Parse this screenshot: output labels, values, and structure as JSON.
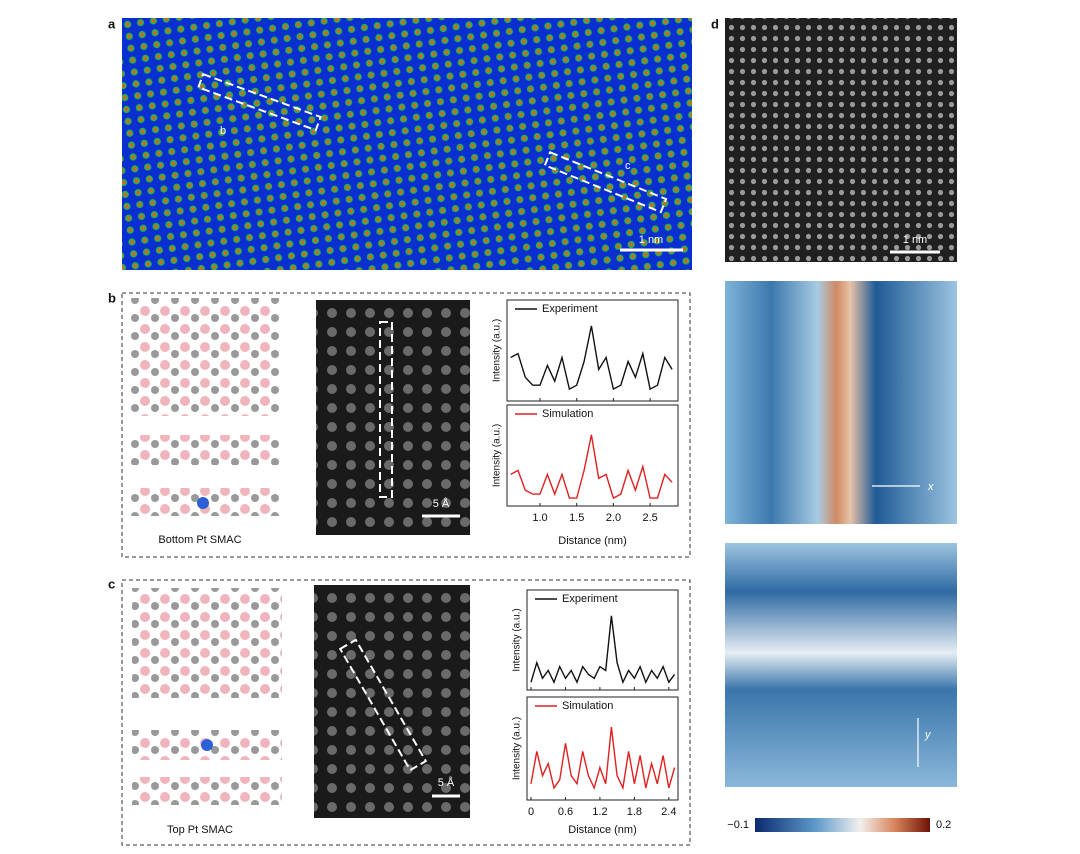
{
  "panel_a": {
    "label": "a",
    "markers": [
      "b",
      "c"
    ],
    "scale_bar": "1 nm"
  },
  "panel_b": {
    "label": "b",
    "caption": "Bottom Pt SMAC",
    "scale_bar": "5 Å",
    "plot": {
      "xlabel": "Distance (nm)",
      "ylabel": "Intensity (a.u.)",
      "xlim": [
        0.55,
        2.88
      ],
      "ylim": [
        0,
        1.05
      ],
      "xticks": [
        {
          "value": 1,
          "label": "1.0"
        },
        {
          "value": 1.5,
          "label": "1.5"
        },
        {
          "value": 2,
          "label": "2.0"
        },
        {
          "value": 2.5,
          "label": "2.5"
        }
      ],
      "x": [
        0.6,
        0.7,
        0.8,
        0.9,
        1.0,
        1.1,
        1.2,
        1.3,
        1.4,
        1.5,
        1.6,
        1.7,
        1.8,
        1.9,
        2.0,
        2.1,
        2.2,
        2.3,
        2.4,
        2.5,
        2.6,
        2.7,
        2.8
      ],
      "series": [
        {
          "name": "Experiment",
          "color": "#111111",
          "values": [
            0.55,
            0.6,
            0.3,
            0.2,
            0.2,
            0.45,
            0.25,
            0.55,
            0.15,
            0.2,
            0.5,
            0.95,
            0.4,
            0.55,
            0.15,
            0.2,
            0.5,
            0.3,
            0.6,
            0.15,
            0.2,
            0.55,
            0.4
          ]
        },
        {
          "name": "Simulation",
          "color": "#e02020",
          "values": [
            0.4,
            0.45,
            0.2,
            0.15,
            0.15,
            0.4,
            0.15,
            0.4,
            0.1,
            0.1,
            0.45,
            0.9,
            0.35,
            0.4,
            0.1,
            0.15,
            0.45,
            0.2,
            0.5,
            0.1,
            0.1,
            0.4,
            0.3
          ]
        }
      ]
    }
  },
  "panel_c": {
    "label": "c",
    "caption": "Top Pt SMAC",
    "scale_bar": "5 Å",
    "plot": {
      "xlabel": "Distance (nm)",
      "ylabel": "Intensity (a.u.)",
      "xlim": [
        -0.07,
        2.56
      ],
      "ylim": [
        0,
        1.05
      ],
      "xticks": [
        0,
        {
          "value": 0.6,
          "label": "0.6"
        },
        {
          "value": 1.2,
          "label": "1.2"
        },
        {
          "value": 1.8,
          "label": "1.8"
        },
        {
          "value": 2.4,
          "label": "2.4"
        }
      ],
      "x": [
        0,
        0.1,
        0.2,
        0.3,
        0.4,
        0.5,
        0.6,
        0.7,
        0.8,
        0.9,
        1.0,
        1.1,
        1.2,
        1.3,
        1.4,
        1.5,
        1.6,
        1.7,
        1.8,
        1.9,
        2.0,
        2.1,
        2.2,
        2.3,
        2.4,
        2.5
      ],
      "series": [
        {
          "name": "Experiment",
          "color": "#111111",
          "values": [
            0.1,
            0.35,
            0.15,
            0.25,
            0.1,
            0.3,
            0.15,
            0.25,
            0.1,
            0.3,
            0.2,
            0.15,
            0.3,
            0.25,
            0.95,
            0.35,
            0.1,
            0.25,
            0.15,
            0.3,
            0.1,
            0.25,
            0.15,
            0.3,
            0.1,
            0.2
          ]
        },
        {
          "name": "Simulation",
          "color": "#e02020",
          "values": [
            0.2,
            0.6,
            0.3,
            0.45,
            0.15,
            0.25,
            0.7,
            0.3,
            0.2,
            0.6,
            0.3,
            0.15,
            0.4,
            0.2,
            0.9,
            0.3,
            0.15,
            0.6,
            0.2,
            0.55,
            0.15,
            0.45,
            0.2,
            0.55,
            0.15,
            0.4
          ]
        }
      ]
    }
  },
  "panel_d": {
    "label": "d",
    "scale_bar": "1 nm",
    "axes": [
      "x",
      "y"
    ],
    "colorbar": {
      "lim": [
        {
          "value": -0.1,
          "label": "−0.1"
        },
        {
          "value": 0.2,
          "label": "0.2"
        }
      ]
    }
  }
}
